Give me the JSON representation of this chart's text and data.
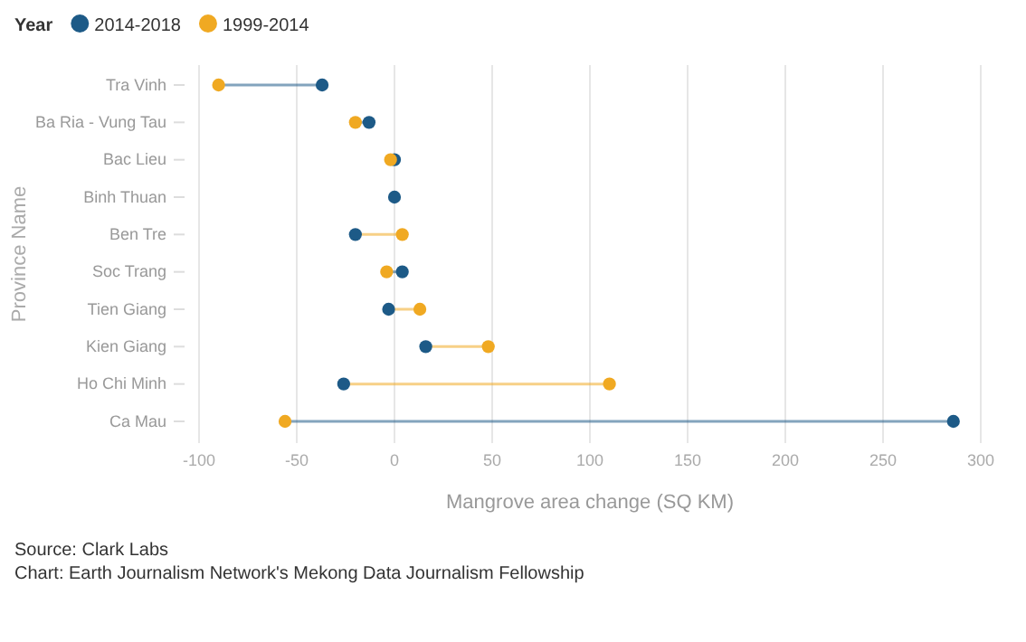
{
  "chart_data": {
    "type": "scatter",
    "orientation": "horizontal",
    "xlabel": "Mangrove area change (SQ KM)",
    "ylabel": "Province Name",
    "legend_title": "Year",
    "legend": "top left",
    "grid": "x",
    "marker": "circle",
    "categories": [
      "Tra Vinh",
      "Ba Ria - Vung Tau",
      "Bac Lieu",
      "Binh Thuan",
      "Ben Tre",
      "Soc Trang",
      "Tien Giang",
      "Kien Giang",
      "Ho Chi Minh",
      "Ca Mau"
    ],
    "series": [
      {
        "name": "2014-2018",
        "color": "#1d5a87",
        "values": [
          -37,
          -13,
          0,
          0,
          -20,
          4,
          -3,
          16,
          -26,
          286
        ]
      },
      {
        "name": "1999-2014",
        "color": "#f0a922",
        "values": [
          -90,
          -20,
          -2,
          null,
          4,
          -4,
          13,
          48,
          110,
          -56
        ]
      }
    ],
    "xlim": [
      -100,
      300
    ],
    "xticks": [
      -100,
      -50,
      0,
      50,
      100,
      150,
      200,
      250,
      300
    ],
    "annotations": [
      "Source: Clark Labs",
      "Chart: Earth Journalism Network's Mekong Data Journalism Fellowship"
    ]
  }
}
